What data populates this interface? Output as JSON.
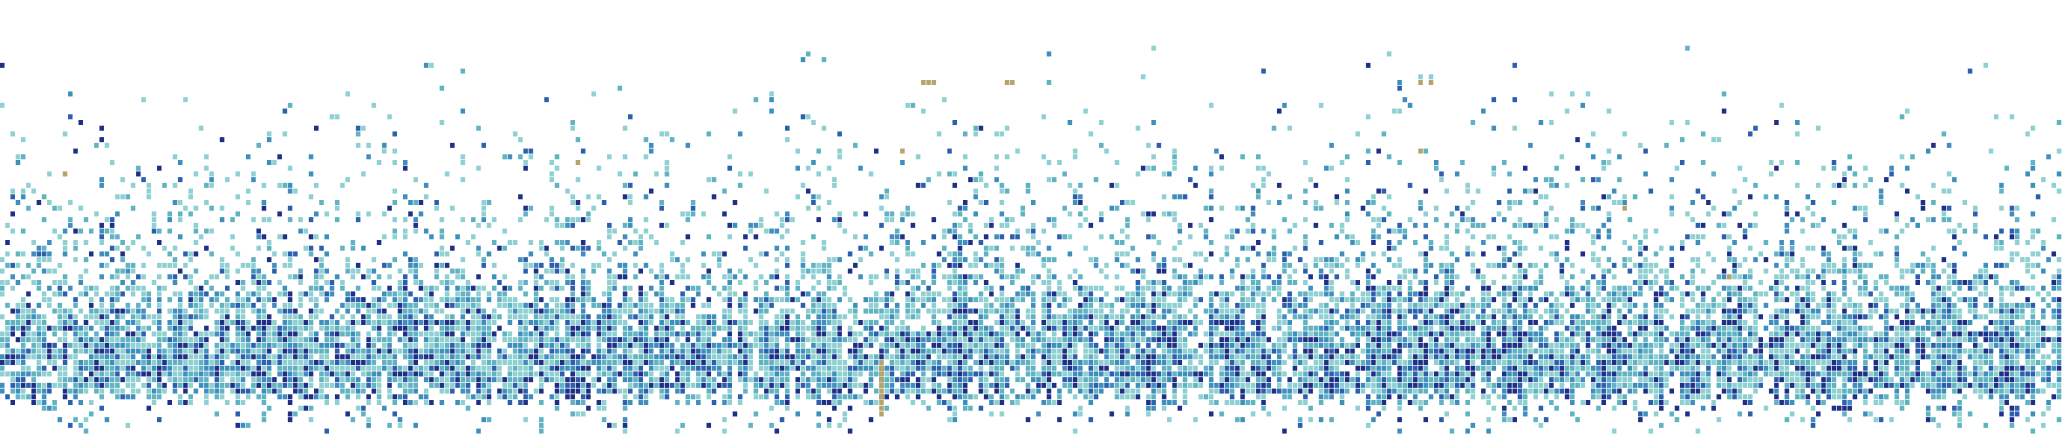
{
  "chart_data": {
    "type": "heatmap",
    "title": "",
    "xlabel": "",
    "ylabel": "",
    "grid": false,
    "legend": "none",
    "value_range": [
      0,
      1
    ],
    "columns": 394,
    "rows": 70,
    "colors": {
      "background": "#ffffff",
      "low": "#8fd0d2",
      "mid_low": "#5fb3c2",
      "mid": "#3f8fbe",
      "mid_high": "#2c5fae",
      "high": "#1f2f86",
      "highlight": "#b7a46a"
    },
    "density_profile": [
      {
        "row": 0,
        "density": 0.0
      },
      {
        "row": 6,
        "density": 0.01
      },
      {
        "row": 12,
        "density": 0.03
      },
      {
        "row": 18,
        "density": 0.06
      },
      {
        "row": 24,
        "density": 0.1
      },
      {
        "row": 30,
        "density": 0.16
      },
      {
        "row": 36,
        "density": 0.24
      },
      {
        "row": 42,
        "density": 0.42
      },
      {
        "row": 48,
        "density": 0.7
      },
      {
        "row": 55,
        "density": 0.9
      },
      {
        "row": 60,
        "density": 0.78
      },
      {
        "row": 64,
        "density": 0.18
      },
      {
        "row": 69,
        "density": 0.0
      }
    ],
    "highlight_cells": [
      {
        "col": 176,
        "row": 7,
        "value": 1.0
      },
      {
        "col": 177,
        "row": 7,
        "value": 1.0
      },
      {
        "col": 178,
        "row": 7,
        "value": 1.0
      },
      {
        "col": 192,
        "row": 7,
        "value": 1.0
      },
      {
        "col": 193,
        "row": 7,
        "value": 1.0
      },
      {
        "col": 271,
        "row": 7,
        "value": 1.0
      },
      {
        "col": 273,
        "row": 7,
        "value": 1.0
      },
      {
        "col": 12,
        "row": 23,
        "value": 1.0
      },
      {
        "col": 110,
        "row": 21,
        "value": 1.0
      },
      {
        "col": 172,
        "row": 19,
        "value": 1.0
      },
      {
        "col": 271,
        "row": 19,
        "value": 1.0
      },
      {
        "col": 310,
        "row": 29,
        "value": 1.0
      },
      {
        "col": 330,
        "row": 41,
        "value": 1.0
      },
      {
        "col": 168,
        "row": 56,
        "value": 1.0
      },
      {
        "col": 168,
        "row": 57,
        "value": 1.0
      },
      {
        "col": 168,
        "row": 58,
        "value": 1.0
      },
      {
        "col": 168,
        "row": 59,
        "value": 1.0
      },
      {
        "col": 168,
        "row": 60,
        "value": 1.0
      },
      {
        "col": 168,
        "row": 61,
        "value": 1.0
      },
      {
        "col": 168,
        "row": 62,
        "value": 1.0
      },
      {
        "col": 168,
        "row": 63,
        "value": 1.0
      },
      {
        "col": 168,
        "row": 64,
        "value": 1.0
      },
      {
        "col": 168,
        "row": 65,
        "value": 1.0
      }
    ],
    "dark_cells": [
      {
        "col": 214,
        "row": 58,
        "value": 0.95
      },
      {
        "col": 215,
        "row": 58,
        "value": 0.95
      },
      {
        "col": 272,
        "row": 26,
        "value": 0.95
      },
      {
        "col": 279,
        "row": 30,
        "value": 0.95
      },
      {
        "col": 339,
        "row": 14,
        "value": 0.9
      },
      {
        "col": 184,
        "row": 28,
        "value": 0.9
      },
      {
        "col": 263,
        "row": 26,
        "value": 0.9
      },
      {
        "col": 109,
        "row": 58,
        "value": 0.9
      },
      {
        "col": 228,
        "row": 25,
        "value": 0.9
      },
      {
        "col": 190,
        "row": 60,
        "value": 0.9
      }
    ]
  }
}
